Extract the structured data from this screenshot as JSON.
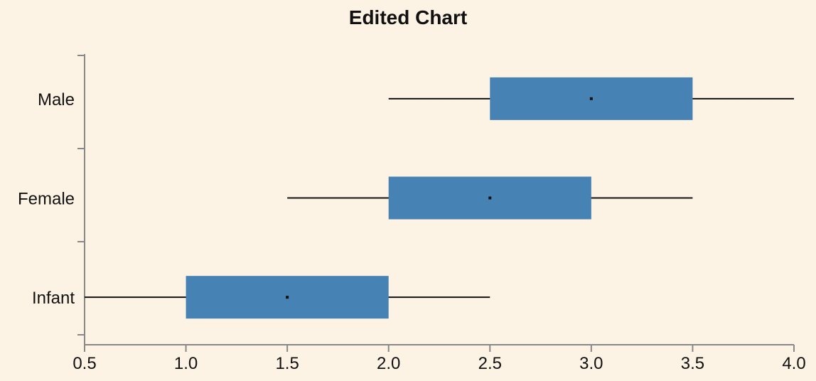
{
  "chart_data": {
    "type": "boxplot",
    "title": "Edited Chart",
    "orientation": "horizontal",
    "xlabel": "",
    "ylabel": "",
    "xlim": [
      0.5,
      4.0
    ],
    "x_ticks": [
      "0.5",
      "1.0",
      "1.5",
      "2.0",
      "2.5",
      "3.0",
      "3.5",
      "4.0"
    ],
    "categories": [
      "Male",
      "Female",
      "Infant"
    ],
    "boxes": [
      {
        "category": "Male",
        "min": 2.0,
        "q1": 2.5,
        "median": 3.0,
        "q3": 3.5,
        "max": 4.0
      },
      {
        "category": "Female",
        "min": 1.5,
        "q1": 2.0,
        "median": 2.5,
        "q3": 3.0,
        "max": 3.5
      },
      {
        "category": "Infant",
        "min": 0.5,
        "q1": 1.0,
        "median": 1.5,
        "q3": 2.0,
        "max": 2.5
      }
    ],
    "box_color": "#4682b4",
    "whisker_color": "#111111",
    "background_color": "#fdf3e5",
    "grid": false,
    "legend": "none"
  }
}
